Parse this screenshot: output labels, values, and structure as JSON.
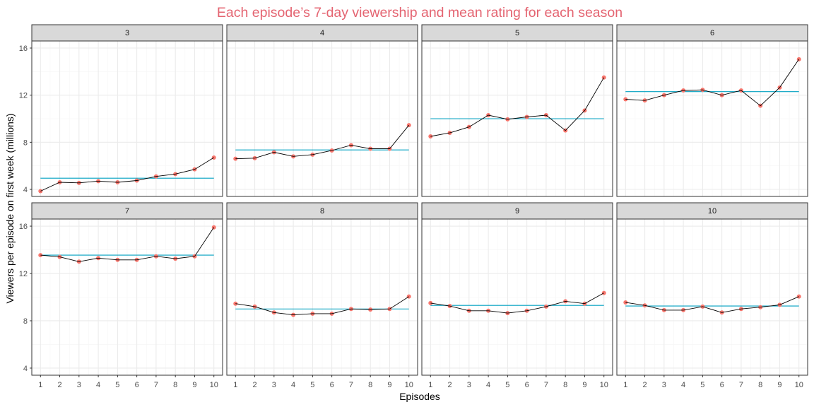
{
  "chart_data": {
    "type": "line",
    "title": "Each episode’s 7-day viewership and mean rating for each season",
    "xlabel": "Episodes",
    "ylabel": "Viewers per episode on first week (millions)",
    "x": [
      1,
      2,
      3,
      4,
      5,
      6,
      7,
      8,
      9,
      10
    ],
    "x_ticks": [
      "1",
      "2",
      "3",
      "4",
      "5",
      "6",
      "7",
      "8",
      "9",
      "10"
    ],
    "y_ticks": [
      4,
      8,
      12,
      16
    ],
    "y_tick_labels": [
      "4",
      "8",
      "12",
      "16"
    ],
    "xlim": [
      0.55,
      10.45
    ],
    "ylim": [
      3.4,
      16.6
    ],
    "grid": true,
    "colors": {
      "title": "#E46471",
      "points": "#F8766D",
      "line": "#000000",
      "mean_line": "#00A0C0",
      "strip_bg": "#D9D9D9",
      "grid_major": "#EBEBEB",
      "grid_minor": "#F5F5F5",
      "panel_border": "#333333"
    },
    "panels": [
      {
        "season": "3",
        "values": [
          3.85,
          4.6,
          4.55,
          4.7,
          4.6,
          4.75,
          5.1,
          5.3,
          5.7,
          6.7
        ],
        "mean": 4.95
      },
      {
        "season": "4",
        "values": [
          6.6,
          6.65,
          7.15,
          6.8,
          6.95,
          7.3,
          7.75,
          7.45,
          7.45,
          9.45
        ],
        "mean": 7.35
      },
      {
        "season": "5",
        "values": [
          8.5,
          8.8,
          9.3,
          10.3,
          9.95,
          10.15,
          10.3,
          9.0,
          10.7,
          13.5
        ],
        "mean": 10.0
      },
      {
        "season": "6",
        "values": [
          11.65,
          11.55,
          12.0,
          12.4,
          12.45,
          12.0,
          12.4,
          11.1,
          12.65,
          15.05
        ],
        "mean": 12.3
      },
      {
        "season": "7",
        "values": [
          13.55,
          13.4,
          13.0,
          13.3,
          13.15,
          13.15,
          13.45,
          13.25,
          13.45,
          15.9
        ],
        "mean": 13.55
      },
      {
        "season": "8",
        "values": [
          9.45,
          9.2,
          8.7,
          8.5,
          8.6,
          8.6,
          9.0,
          8.95,
          9.0,
          10.05
        ],
        "mean": 9.0
      },
      {
        "season": "9",
        "values": [
          9.5,
          9.25,
          8.85,
          8.85,
          8.65,
          8.85,
          9.2,
          9.65,
          9.45,
          10.35
        ],
        "mean": 9.3
      },
      {
        "season": "10",
        "values": [
          9.55,
          9.3,
          8.9,
          8.9,
          9.2,
          8.7,
          9.0,
          9.15,
          9.35,
          10.05
        ],
        "mean": 9.25
      }
    ]
  }
}
